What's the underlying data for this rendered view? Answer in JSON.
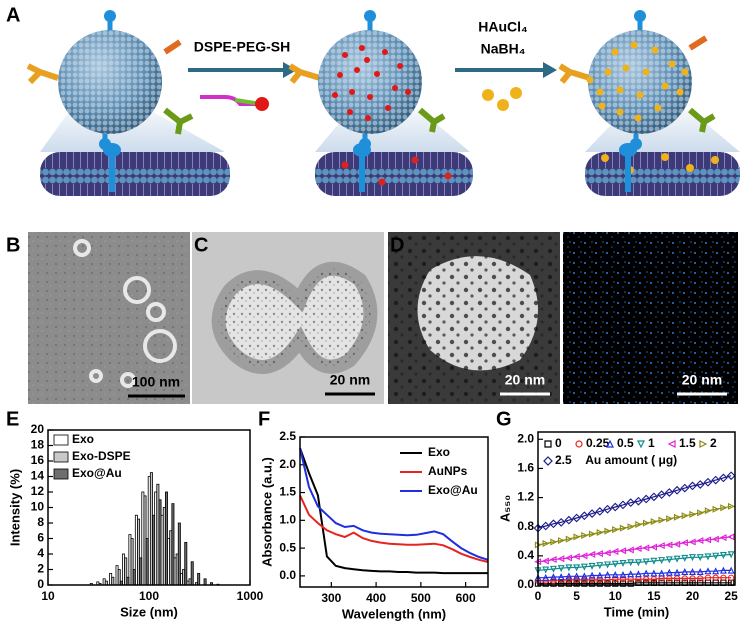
{
  "panel_labels": [
    "A",
    "B",
    "C",
    "D",
    "E",
    "F",
    "G"
  ],
  "schematic": {
    "step1": "DSPE-PEG-SH",
    "step2_reagents": [
      "HAuCl₄",
      "NaBH₄"
    ]
  },
  "micrographs": {
    "B_scale": "100 nm",
    "C_scale": "20 nm",
    "D1_scale": "20 nm",
    "D2_scale": "20 nm"
  },
  "chart_data": [
    {
      "type": "bar",
      "x_label": "Size (nm)",
      "y_label": "Intensity (%)",
      "log_x": true,
      "xlim": [
        10,
        1000
      ],
      "xticks": [
        10,
        100,
        1000
      ],
      "ylim": [
        0,
        20
      ],
      "yticks": [
        0,
        2,
        4,
        6,
        8,
        10,
        12,
        14,
        16,
        18,
        20
      ],
      "legend": "upper left",
      "x": [
        15.7,
        18.2,
        21,
        24.4,
        28.2,
        32.7,
        37.8,
        43.8,
        50.7,
        58.8,
        68,
        78.8,
        91.3,
        105.7,
        122.4,
        141.8,
        164.2,
        190.1,
        220.2,
        255,
        295.3,
        342,
        396.1,
        458.7
      ],
      "series": [
        {
          "name": "Exo",
          "color": "#ffffff",
          "values": [
            0,
            0,
            0,
            0,
            0.2,
            0.4,
            0.8,
            1.5,
            2.5,
            4,
            6.5,
            9,
            12,
            14,
            12,
            9,
            6,
            3.5,
            1.5,
            0.5,
            0,
            0,
            0,
            0
          ]
        },
        {
          "name": "Exo-DSPE",
          "color": "#c8c8c8",
          "values": [
            0,
            0,
            0,
            0,
            0,
            0.2,
            0.5,
            1,
            2,
            3.5,
            6,
            8.5,
            11.5,
            14.5,
            13,
            10,
            7,
            4,
            2,
            0.8,
            0.3,
            0,
            0,
            0
          ]
        },
        {
          "name": "Exo@Au",
          "color": "#6e6e6e",
          "values": [
            0,
            0,
            0,
            0,
            0,
            0,
            0,
            0,
            0.5,
            1,
            2,
            3.5,
            6,
            9,
            11,
            12,
            10.5,
            8,
            5.5,
            3,
            1.5,
            0.8,
            0.3,
            0.1
          ]
        }
      ]
    },
    {
      "type": "line",
      "x_label": "Wavelength (nm)",
      "y_label": "Absorbance (a.u.)",
      "xlim": [
        230,
        650
      ],
      "xticks": [
        300,
        400,
        500,
        600
      ],
      "ylim": [
        -0.2,
        2.5
      ],
      "yticks": [
        {
          "value": 0,
          "label": "0.0"
        },
        0.5,
        {
          "value": 1,
          "label": "1.0"
        },
        1.5,
        {
          "value": 2,
          "label": "2.0"
        },
        2.5
      ],
      "legend": "upper right",
      "x": [
        230,
        250,
        270,
        290,
        310,
        330,
        350,
        370,
        390,
        410,
        430,
        450,
        470,
        490,
        510,
        530,
        550,
        570,
        590,
        610,
        630,
        650
      ],
      "series": [
        {
          "name": "Exo",
          "color": "#000000",
          "values": [
            2.3,
            1.85,
            1.45,
            0.35,
            0.18,
            0.14,
            0.12,
            0.1,
            0.09,
            0.08,
            0.08,
            0.07,
            0.07,
            0.06,
            0.06,
            0.06,
            0.05,
            0.05,
            0.05,
            0.05,
            0.05,
            0.05
          ]
        },
        {
          "name": "AuNPs",
          "color": "#e8231f",
          "values": [
            1.45,
            1.1,
            0.95,
            0.82,
            0.75,
            0.7,
            0.78,
            0.68,
            0.63,
            0.6,
            0.58,
            0.57,
            0.56,
            0.56,
            0.57,
            0.58,
            0.55,
            0.48,
            0.4,
            0.34,
            0.29,
            0.25
          ]
        },
        {
          "name": "Exo@Au",
          "color": "#1f2fe0",
          "values": [
            2.3,
            1.6,
            1.25,
            1.1,
            0.95,
            0.88,
            0.9,
            0.82,
            0.78,
            0.76,
            0.75,
            0.74,
            0.73,
            0.74,
            0.77,
            0.8,
            0.75,
            0.62,
            0.5,
            0.41,
            0.34,
            0.29
          ]
        }
      ]
    },
    {
      "type": "scatter",
      "x_label": "Time (min)",
      "y_label": "A₅₅₀",
      "legend_title": "Au amount ( μg)",
      "fit_lines": true,
      "xlim": [
        0,
        25.5
      ],
      "xticks": [
        0,
        5,
        10,
        15,
        20,
        25
      ],
      "ylim": [
        0,
        2.1
      ],
      "yticks": [
        {
          "value": 0,
          "label": "0.0"
        },
        0.4,
        0.8,
        1.2,
        1.6,
        {
          "value": 2,
          "label": "2.0"
        }
      ],
      "legend": "upper left",
      "x": [
        0,
        1,
        2,
        3,
        4,
        5,
        6,
        7,
        8,
        9,
        10,
        11,
        12,
        13,
        14,
        15,
        16,
        17,
        18,
        19,
        20,
        21,
        22,
        23,
        24,
        25
      ],
      "series": [
        {
          "name": "0",
          "color": "#000000",
          "marker": "square",
          "values": [
            0.02,
            0.02,
            0.02,
            0.02,
            0.02,
            0.02,
            0.02,
            0.02,
            0.02,
            0.02,
            0.02,
            0.02,
            0.02,
            0.03,
            0.03,
            0.03,
            0.03,
            0.03,
            0.03,
            0.03,
            0.03,
            0.03,
            0.03,
            0.03,
            0.03,
            0.03
          ]
        },
        {
          "name": "0.25",
          "color": "#e8231f",
          "marker": "circle",
          "values": [
            0.06,
            0.06,
            0.06,
            0.07,
            0.07,
            0.07,
            0.07,
            0.07,
            0.07,
            0.07,
            0.08,
            0.08,
            0.08,
            0.08,
            0.08,
            0.08,
            0.09,
            0.09,
            0.09,
            0.09,
            0.09,
            0.09,
            0.1,
            0.1,
            0.1,
            0.1
          ]
        },
        {
          "name": "0.5",
          "color": "#1f2fe0",
          "marker": "triangle-up",
          "values": [
            0.1,
            0.1,
            0.11,
            0.11,
            0.12,
            0.12,
            0.12,
            0.13,
            0.13,
            0.14,
            0.14,
            0.14,
            0.15,
            0.15,
            0.16,
            0.16,
            0.16,
            0.17,
            0.17,
            0.18,
            0.18,
            0.18,
            0.19,
            0.19,
            0.2,
            0.2
          ]
        },
        {
          "name": "1",
          "color": "#0e8c8c",
          "marker": "triangle-down",
          "values": [
            0.2,
            0.21,
            0.22,
            0.23,
            0.24,
            0.24,
            0.25,
            0.26,
            0.27,
            0.28,
            0.29,
            0.3,
            0.31,
            0.31,
            0.32,
            0.33,
            0.34,
            0.35,
            0.36,
            0.37,
            0.38,
            0.38,
            0.39,
            0.4,
            0.41,
            0.42
          ]
        },
        {
          "name": "1.5",
          "color": "#e020d8",
          "marker": "triangle-left",
          "values": [
            0.32,
            0.33,
            0.35,
            0.36,
            0.37,
            0.39,
            0.4,
            0.42,
            0.43,
            0.44,
            0.46,
            0.47,
            0.48,
            0.5,
            0.51,
            0.52,
            0.54,
            0.55,
            0.56,
            0.58,
            0.59,
            0.61,
            0.62,
            0.63,
            0.65,
            0.66
          ]
        },
        {
          "name": "2",
          "color": "#8a8a12",
          "marker": "triangle-right",
          "values": [
            0.55,
            0.57,
            0.59,
            0.61,
            0.63,
            0.66,
            0.68,
            0.7,
            0.72,
            0.74,
            0.76,
            0.78,
            0.8,
            0.83,
            0.85,
            0.87,
            0.89,
            0.91,
            0.93,
            0.95,
            0.97,
            0.99,
            1.02,
            1.04,
            1.06,
            1.08
          ]
        },
        {
          "name": "2.5",
          "color": "#1a1a8c",
          "marker": "diamond",
          "values": [
            0.78,
            0.81,
            0.84,
            0.86,
            0.89,
            0.92,
            0.95,
            0.98,
            1.01,
            1.04,
            1.07,
            1.1,
            1.13,
            1.15,
            1.18,
            1.21,
            1.24,
            1.27,
            1.3,
            1.33,
            1.36,
            1.38,
            1.41,
            1.44,
            1.47,
            1.5
          ]
        }
      ]
    }
  ]
}
